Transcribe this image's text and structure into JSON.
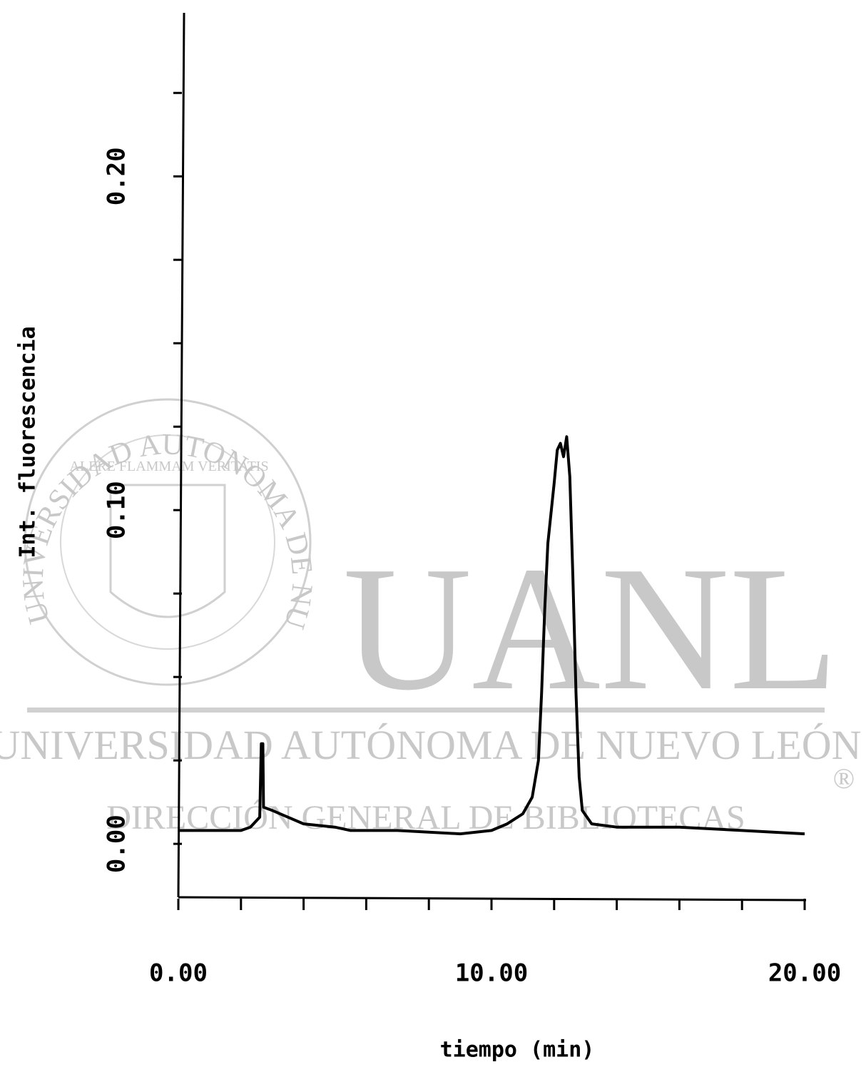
{
  "chart_data": {
    "type": "line",
    "y_label": "Int. fluorescencia",
    "x_label": "tiempo (min)",
    "x": [
      0,
      1,
      2,
      2.3,
      2.6,
      2.65,
      2.7,
      2.72,
      3.0,
      3.5,
      4,
      5,
      5.5,
      7,
      9,
      10,
      10.5,
      11,
      11.3,
      11.5,
      11.6,
      11.7,
      11.8,
      12.0,
      12.1,
      12.2,
      12.3,
      12.4,
      12.5,
      12.6,
      12.7,
      12.8,
      12.9,
      13.2,
      14,
      16,
      18,
      20
    ],
    "series": [
      {
        "color": "#000000",
        "values": [
          0.004,
          0.004,
          0.004,
          0.005,
          0.008,
          0.03,
          0.03,
          0.011,
          0.01,
          0.008,
          0.006,
          0.005,
          0.004,
          0.004,
          0.003,
          0.004,
          0.006,
          0.009,
          0.014,
          0.025,
          0.045,
          0.07,
          0.09,
          0.108,
          0.118,
          0.12,
          0.116,
          0.122,
          0.11,
          0.08,
          0.045,
          0.02,
          0.01,
          0.006,
          0.005,
          0.005,
          0.004,
          0.003
        ]
      }
    ],
    "xlim": [
      0,
      20
    ],
    "xticks": [
      {
        "value": 0,
        "label": "0.00"
      },
      2,
      4,
      6,
      8,
      {
        "value": 10,
        "label": "10.00"
      },
      12,
      14,
      16,
      18,
      {
        "value": 20,
        "label": "20.00"
      }
    ],
    "ylim": [
      -0.016,
      0.249
    ],
    "yticks": [
      {
        "value": 0,
        "label": "0.00"
      },
      0.025,
      0.05,
      0.075,
      {
        "value": 0.1,
        "label": "0.10"
      },
      0.125,
      0.15,
      0.175,
      {
        "value": 0.2,
        "label": "0.20"
      },
      0.225
    ],
    "grid": false
  },
  "watermark": {
    "seal": "UNIVERSIDAD AUTONOMA DE NUEVO LEON",
    "motto": "ALERE FLAMMAM VERITATIS",
    "logo": "UANL",
    "name": "UNIVERSIDAD AUTÓNOMA DE NUEVO LEÓN",
    "registered": "®",
    "department": "DIRECCIÓN GENERAL DE BIBLIOTECAS"
  }
}
